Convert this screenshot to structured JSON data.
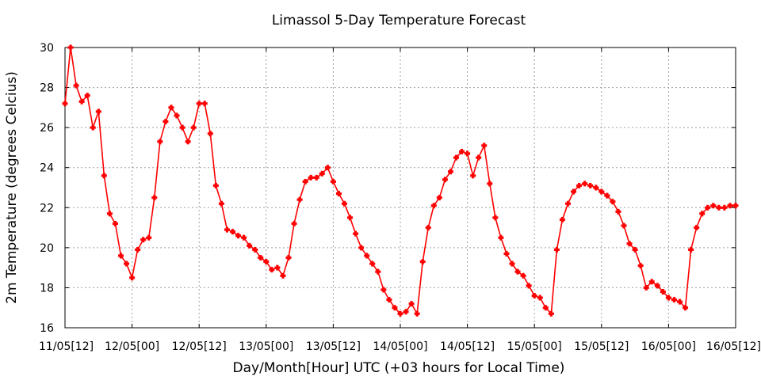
{
  "chart_data": {
    "type": "line",
    "title": "Limassol 5-Day Temperature Forecast",
    "xlabel": "Day/Month[Hour] UTC (+03 hours for Local Time)",
    "ylabel": "2m Temperature (degrees Celcius)",
    "ylim": [
      16,
      30
    ],
    "yticks": [
      16,
      18,
      20,
      22,
      24,
      26,
      28,
      30
    ],
    "xlim": [
      0,
      120
    ],
    "xtick_positions": [
      0,
      12,
      24,
      36,
      48,
      60,
      72,
      84,
      96,
      108,
      120
    ],
    "xtick_labels": [
      "11/05[12]",
      "12/05[00]",
      "12/05[12]",
      "13/05[00]",
      "13/05[12]",
      "14/05[00]",
      "14/05[12]",
      "15/05[00]",
      "15/05[12]",
      "16/05[00]",
      "16/05[12]"
    ],
    "grid": true,
    "series": [
      {
        "color": "#ff0000",
        "x": [
          0,
          1,
          2,
          3,
          4,
          5,
          6,
          7,
          8,
          9,
          10,
          11,
          12,
          13,
          14,
          15,
          16,
          17,
          18,
          19,
          20,
          21,
          22,
          23,
          24,
          25,
          26,
          27,
          28,
          29,
          30,
          31,
          32,
          33,
          34,
          35,
          36,
          37,
          38,
          39,
          40,
          41,
          42,
          43,
          44,
          45,
          46,
          47,
          48,
          49,
          50,
          51,
          52,
          53,
          54,
          55,
          56,
          57,
          58,
          59,
          60,
          61,
          62,
          63,
          64,
          65,
          66,
          67,
          68,
          69,
          70,
          71,
          72,
          73,
          74,
          75,
          76,
          77,
          78,
          79,
          80,
          81,
          82,
          83,
          84,
          85,
          86,
          87,
          88,
          89,
          90,
          91,
          92,
          93,
          94,
          95,
          96,
          97,
          98,
          99,
          100,
          101,
          102,
          103,
          104,
          105,
          106,
          107,
          108,
          109,
          110,
          111,
          112,
          113,
          114,
          115,
          116,
          117,
          118,
          119,
          120
        ],
        "y": [
          27.2,
          30.0,
          28.1,
          27.3,
          27.6,
          26.0,
          26.8,
          23.6,
          21.7,
          21.2,
          19.6,
          19.2,
          18.5,
          19.9,
          20.4,
          20.5,
          22.5,
          25.3,
          26.3,
          27.0,
          26.6,
          26.0,
          25.3,
          26.0,
          27.2,
          27.2,
          25.7,
          23.1,
          22.2,
          20.9,
          20.8,
          20.6,
          20.5,
          20.1,
          19.9,
          19.5,
          19.3,
          18.9,
          19.0,
          18.6,
          19.5,
          21.2,
          22.4,
          23.3,
          23.5,
          23.5,
          23.7,
          24.0,
          23.3,
          22.7,
          22.2,
          21.5,
          20.7,
          20.0,
          19.6,
          19.2,
          18.8,
          17.9,
          17.4,
          17.0,
          16.7,
          16.8,
          17.2,
          16.7,
          19.3,
          21.0,
          22.1,
          22.5,
          23.4,
          23.8,
          24.5,
          24.8,
          24.7,
          23.6,
          24.5,
          25.1,
          23.2,
          21.5,
          20.5,
          19.7,
          19.2,
          18.8,
          18.6,
          18.1,
          17.6,
          17.5,
          17.0,
          16.7,
          19.9,
          21.4,
          22.2,
          22.8,
          23.1,
          23.2,
          23.1,
          23.0,
          22.8,
          22.6,
          22.3,
          21.8,
          21.1,
          20.2,
          19.9,
          19.1,
          18.0,
          18.3,
          18.1,
          17.8,
          17.5,
          17.4,
          17.3,
          17.0,
          19.9,
          21.0,
          21.7,
          22.0,
          22.1,
          22.0,
          22.0,
          22.1,
          22.1
        ]
      }
    ]
  }
}
